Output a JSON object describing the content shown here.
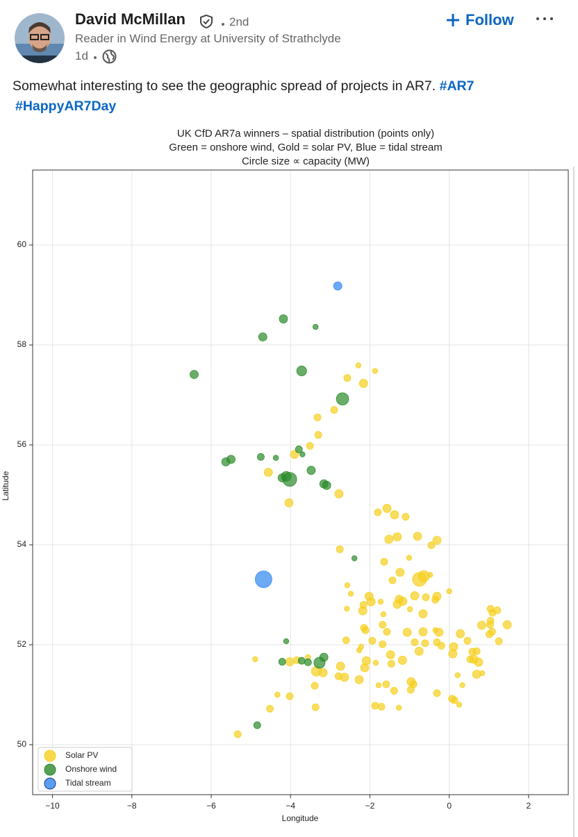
{
  "post": {
    "author": "David McMillan",
    "degree": "2nd",
    "headline": "Reader in Wind Energy at University of Strathclyde",
    "time": "1d",
    "follow": "Follow",
    "text": "Somewhat interesting to see the geographic spread of projects in AR7.",
    "hashtags": [
      "#AR7",
      "#HappyAR7Day"
    ]
  },
  "chart_data": {
    "type": "scatter",
    "title": [
      "UK CfD AR7a winners – spatial distribution (points only)",
      "Green = onshore wind, Gold = solar PV, Blue = tidal stream",
      "Circle size ∝ capacity (MW)"
    ],
    "x_label": "Longitude",
    "y_label": "Latitude",
    "xlim": [
      -10.5,
      3.0
    ],
    "ylim": [
      49.0,
      61.5
    ],
    "xticks": [
      {
        "value": -10,
        "label": "−10"
      },
      {
        "value": -8,
        "label": "−8"
      },
      {
        "value": -6,
        "label": "−6"
      },
      {
        "value": -4,
        "label": "−4"
      },
      {
        "value": -2,
        "label": "−2"
      },
      0,
      2
    ],
    "yticks": [
      50,
      52,
      54,
      56,
      58,
      60
    ],
    "grid": true,
    "legend": "lower left",
    "series": [
      {
        "name": "Solar PV",
        "color": "#f5cf1c",
        "x": [
          -2.29,
          -1.87,
          -2.57,
          -2.16,
          -2.9,
          -3.32,
          -3.3,
          -3.51,
          -3.9,
          -4.56,
          -2.78,
          -4.04,
          -1.8,
          -1.57,
          -1.38,
          -1.1,
          -1.52,
          -1.31,
          -0.8,
          -0.31,
          -0.45,
          -2.76,
          -1.64,
          -1.01,
          -1.24,
          -0.75,
          -0.64,
          -0.48,
          -1.43,
          -2.57,
          -2.48,
          -2.02,
          -1.73,
          -1.26,
          -1.17,
          -1.31,
          -0.87,
          -0.59,
          -0.31,
          -0.35,
          0.0,
          -0.99,
          -0.66,
          -2.16,
          -1.97,
          -2.18,
          -2.58,
          -1.66,
          -1.68,
          -2.15,
          -2.11,
          -1.57,
          -1.06,
          -0.66,
          -0.35,
          -0.26,
          -0.31,
          -0.2,
          -0.87,
          -0.61,
          -1.94,
          -2.6,
          -2.27,
          -2.22,
          -1.68,
          -0.76,
          0.11,
          0.09,
          0.28,
          1.04,
          1.09,
          1.21,
          0.82,
          1.03,
          1.04,
          1.46,
          1.01,
          1.08,
          0.46,
          1.25,
          0.58,
          0.69,
          0.62,
          0.74,
          0.53,
          0.69,
          0.83,
          0.21,
          0.33,
          0.07,
          0.13,
          0.25,
          -0.31,
          -0.9,
          -0.97,
          -0.96,
          -1.18,
          -1.48,
          -1.46,
          -1.85,
          -2.09,
          -2.13,
          -2.74,
          -2.27,
          -2.64,
          -2.79,
          -3.18,
          -3.35,
          -3.39,
          -3.56,
          -4.02,
          -3.84,
          -4.89,
          -4.33,
          -4.02,
          -4.52,
          -3.37,
          -5.33,
          -1.87,
          -1.71,
          -1.27,
          -1.59,
          -1.39,
          -1.78
        ],
        "y": [
          57.59,
          57.48,
          57.34,
          57.23,
          56.7,
          56.55,
          56.2,
          55.98,
          55.81,
          55.45,
          55.02,
          54.84,
          54.65,
          54.73,
          54.6,
          54.56,
          54.11,
          54.16,
          54.17,
          54.09,
          53.99,
          53.91,
          53.66,
          53.74,
          53.45,
          53.31,
          53.37,
          53.4,
          53.29,
          53.19,
          53.02,
          52.97,
          52.86,
          52.91,
          52.87,
          52.81,
          52.98,
          52.95,
          52.97,
          52.9,
          53.07,
          52.71,
          52.62,
          52.8,
          52.86,
          52.68,
          52.72,
          52.61,
          52.4,
          52.34,
          52.29,
          52.26,
          52.25,
          52.26,
          52.29,
          52.25,
          52.05,
          51.98,
          52.05,
          52.03,
          52.08,
          52.09,
          51.89,
          51.96,
          52.01,
          51.87,
          51.96,
          51.82,
          52.22,
          52.72,
          52.64,
          52.69,
          52.39,
          52.4,
          52.48,
          52.4,
          52.21,
          52.26,
          52.08,
          52.07,
          51.86,
          51.87,
          51.71,
          51.65,
          51.71,
          51.41,
          51.43,
          51.39,
          51.19,
          50.92,
          50.89,
          50.8,
          51.03,
          51.21,
          51.1,
          51.26,
          51.69,
          51.8,
          51.62,
          51.64,
          51.68,
          51.54,
          51.57,
          51.3,
          51.35,
          51.37,
          51.44,
          51.47,
          51.18,
          51.75,
          51.66,
          51.69,
          51.71,
          51.0,
          50.97,
          50.72,
          50.75,
          50.21,
          50.78,
          50.76,
          50.74,
          51.21,
          51.08,
          51.19
        ],
        "sizes": [
          20,
          20,
          35,
          50,
          35,
          35,
          35,
          35,
          50,
          50,
          50,
          50,
          35,
          50,
          50,
          35,
          50,
          50,
          50,
          50,
          35,
          35,
          35,
          20,
          50,
          140,
          90,
          20,
          35,
          20,
          20,
          50,
          20,
          50,
          50,
          50,
          50,
          35,
          50,
          35,
          20,
          20,
          50,
          35,
          50,
          50,
          20,
          20,
          35,
          35,
          35,
          35,
          50,
          50,
          20,
          50,
          35,
          35,
          35,
          35,
          35,
          35,
          20,
          20,
          35,
          50,
          50,
          50,
          50,
          35,
          35,
          35,
          50,
          35,
          35,
          50,
          35,
          35,
          35,
          35,
          35,
          35,
          50,
          50,
          35,
          50,
          20,
          20,
          20,
          35,
          35,
          20,
          35,
          35,
          35,
          50,
          50,
          50,
          35,
          20,
          50,
          50,
          50,
          50,
          50,
          35,
          50,
          70,
          35,
          20,
          50,
          35,
          20,
          20,
          35,
          35,
          35,
          35,
          35,
          35,
          20,
          35,
          35,
          20
        ]
      },
      {
        "name": "Onshore wind",
        "color": "#2a8a2a",
        "x": [
          -4.18,
          -4.7,
          -3.37,
          -6.43,
          -3.72,
          -2.69,
          -5.63,
          -5.5,
          -4.75,
          -4.37,
          -3.79,
          -3.7,
          -3.48,
          -4.21,
          -4.11,
          -4.02,
          -3.16,
          -3.09,
          -2.39,
          -4.11,
          -4.21,
          -3.72,
          -3.56,
          -3.27,
          -3.16,
          -4.84
        ],
        "y": [
          58.52,
          58.16,
          58.36,
          57.41,
          57.48,
          56.92,
          55.66,
          55.71,
          55.76,
          55.74,
          55.91,
          55.81,
          55.49,
          55.34,
          55.37,
          55.31,
          55.22,
          55.19,
          53.73,
          52.07,
          51.66,
          51.68,
          51.65,
          51.64,
          51.75,
          50.39
        ],
        "sizes": [
          50,
          50,
          20,
          50,
          70,
          110,
          50,
          50,
          35,
          20,
          35,
          20,
          50,
          50,
          70,
          140,
          50,
          50,
          20,
          20,
          35,
          35,
          35,
          90,
          50,
          35
        ]
      },
      {
        "name": "Tidal stream",
        "color": "#2f86f0",
        "x": [
          -2.81,
          -4.68
        ],
        "y": [
          59.18,
          53.31
        ],
        "sizes": [
          50,
          200
        ]
      }
    ]
  }
}
